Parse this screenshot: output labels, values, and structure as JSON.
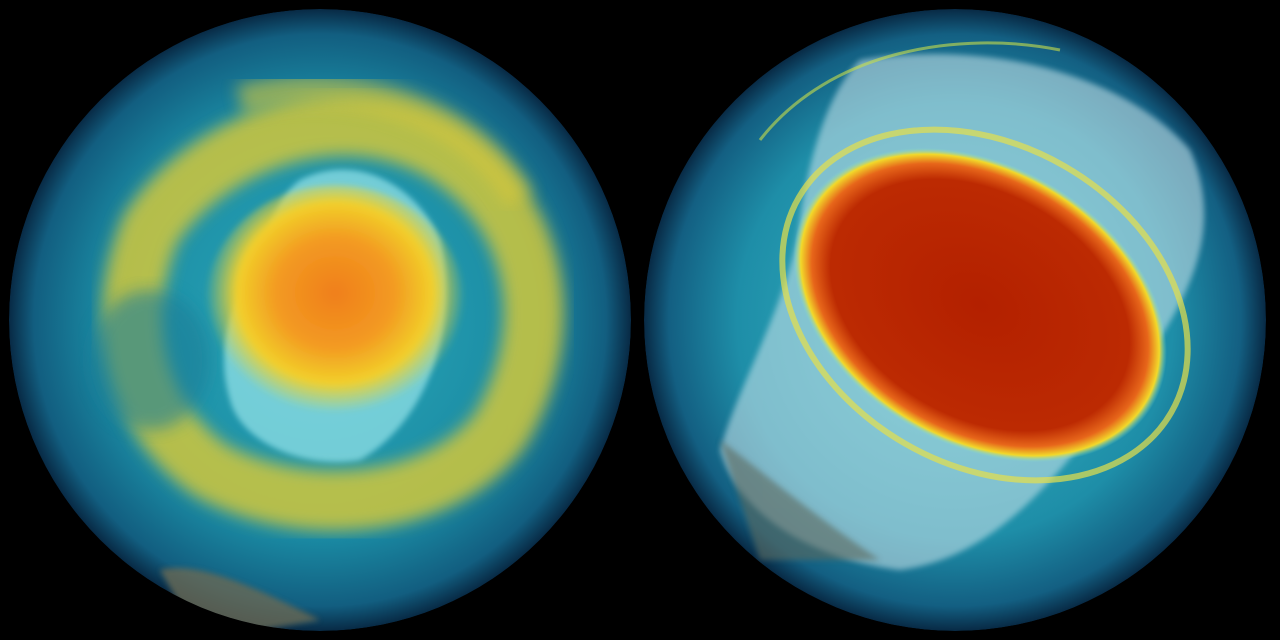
{
  "image": {
    "description_type": "two polar globe visualizations side by side",
    "colors": {
      "background": "#000000",
      "ocean_teal": "#1d8fa6",
      "deep_blue": "#0a3d5c",
      "yellow": "#f2d22a",
      "orange": "#f08a1c",
      "red": "#b82200",
      "ice": "#cfe6ec"
    }
  }
}
